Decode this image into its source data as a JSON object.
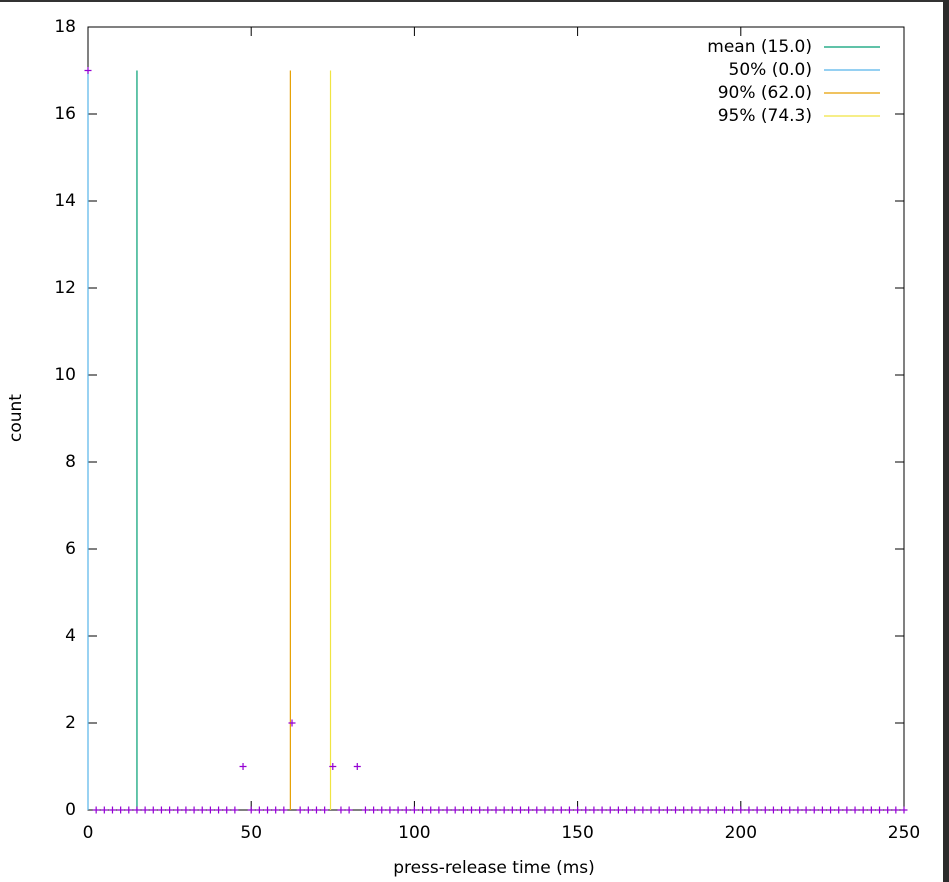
{
  "chart_data": {
    "type": "scatter",
    "xlabel": "press-release time (ms)",
    "ylabel": "count",
    "xlim": [
      0,
      250
    ],
    "ylim": [
      0,
      18
    ],
    "xticks": [
      0,
      50,
      100,
      150,
      200,
      250
    ],
    "yticks": [
      0,
      2,
      4,
      6,
      8,
      10,
      12,
      14,
      16,
      18
    ],
    "marker_color": "#9400d3",
    "x": [
      0,
      2.5,
      5,
      7.5,
      10,
      12.5,
      15,
      17.5,
      20,
      22.5,
      25,
      27.5,
      30,
      32.5,
      35,
      37.5,
      40,
      42.5,
      45,
      47.5,
      50,
      52.5,
      55,
      57.5,
      60,
      62.5,
      65,
      67.5,
      70,
      72.5,
      75,
      77.5,
      80,
      82.5,
      85,
      87.5,
      90,
      92.5,
      95,
      97.5,
      100,
      102.5,
      105,
      107.5,
      110,
      112.5,
      115,
      117.5,
      120,
      122.5,
      125,
      127.5,
      130,
      132.5,
      135,
      137.5,
      140,
      142.5,
      145,
      147.5,
      150,
      152.5,
      155,
      157.5,
      160,
      162.5,
      165,
      167.5,
      170,
      172.5,
      175,
      177.5,
      180,
      182.5,
      185,
      187.5,
      190,
      192.5,
      195,
      197.5,
      200,
      202.5,
      205,
      207.5,
      210,
      212.5,
      215,
      217.5,
      220,
      222.5,
      225,
      227.5,
      230,
      232.5,
      235,
      237.5,
      240,
      242.5,
      245,
      247.5,
      250
    ],
    "values": [
      17,
      0,
      0,
      0,
      0,
      0,
      0,
      0,
      0,
      0,
      0,
      0,
      0,
      0,
      0,
      0,
      0,
      0,
      0,
      1,
      0,
      0,
      0,
      0,
      0,
      2,
      0,
      0,
      0,
      0,
      1,
      0,
      0,
      1,
      0,
      0,
      0,
      0,
      0,
      0,
      0,
      0,
      0,
      0,
      0,
      0,
      0,
      0,
      0,
      0,
      0,
      0,
      0,
      0,
      0,
      0,
      0,
      0,
      0,
      0,
      0,
      0,
      0,
      0,
      0,
      0,
      0,
      0,
      0,
      0,
      0,
      0,
      0,
      0,
      0,
      0,
      0,
      0,
      0,
      0,
      0,
      0,
      0,
      0,
      0,
      0,
      0,
      0,
      0,
      0,
      0,
      0,
      0,
      0,
      0,
      0,
      0,
      0,
      0,
      0,
      0
    ],
    "reference_lines": [
      {
        "name": "mean (15.0)",
        "color": "#009e73",
        "x": 15.0,
        "top": 17
      },
      {
        "name": "50% (0.0)",
        "color": "#56b4e9",
        "x": 0.0,
        "top": 17
      },
      {
        "name": "90% (62.0)",
        "color": "#e69f00",
        "x": 62.0,
        "top": 17
      },
      {
        "name": "95% (74.3)",
        "color": "#f0e442",
        "x": 74.3,
        "top": 17
      }
    ]
  }
}
